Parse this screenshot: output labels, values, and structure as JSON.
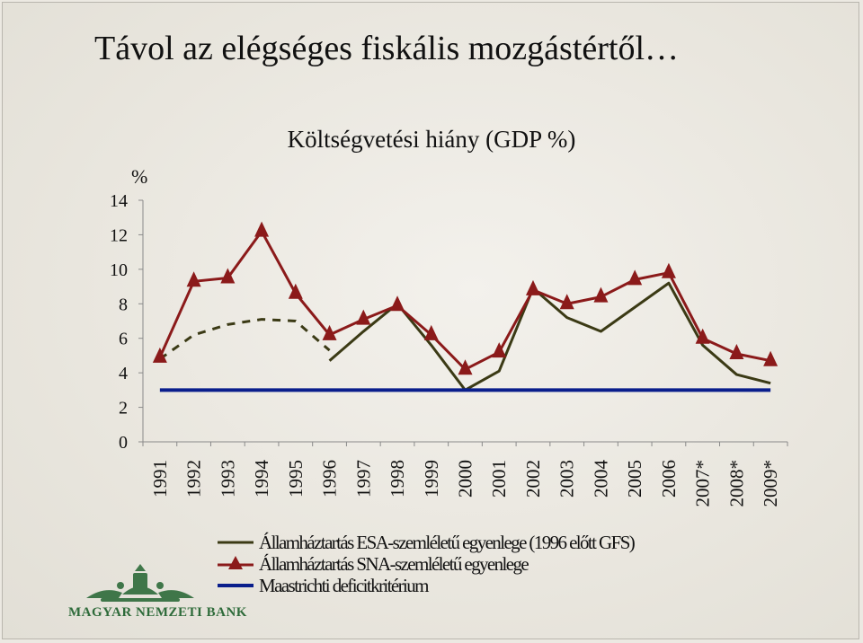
{
  "slide": {
    "title": "Távol az elégséges fiskális mozgástértől…"
  },
  "logo": {
    "text": "MAGYAR NEMZETI BANK"
  },
  "chart_data": {
    "type": "line",
    "title": "Költségvetési hiány (GDP %)",
    "y_unit": "%",
    "ylim": [
      0,
      14
    ],
    "y_ticks": [
      0,
      2,
      4,
      6,
      8,
      10,
      12,
      14
    ],
    "categories": [
      "1991",
      "1992",
      "1993",
      "1994",
      "1995",
      "1996",
      "1997",
      "1998",
      "1999",
      "2000",
      "2001",
      "2002",
      "2003",
      "2004",
      "2005",
      "2006",
      "2007*",
      "2008*",
      "2009*"
    ],
    "series": [
      {
        "name": "Államháztartás ESA-szemléletű egyenlege (1996 előtt GFS)",
        "color": "#3b3a15",
        "style": "solid",
        "values": [
          null,
          null,
          null,
          null,
          null,
          4.7,
          6.4,
          8.0,
          5.6,
          3.0,
          4.1,
          8.9,
          7.2,
          6.4,
          7.8,
          9.2,
          5.6,
          3.9,
          3.4
        ]
      },
      {
        "name": "",
        "color": "#3b3a15",
        "style": "dashed",
        "values": [
          4.8,
          6.2,
          6.8,
          7.1,
          7.0,
          5.3,
          null,
          null,
          null,
          null,
          null,
          null,
          null,
          null,
          null,
          null,
          null,
          null,
          null
        ]
      },
      {
        "name": "Államháztartás SNA-szemléletű egyenlege",
        "color": "#8b1a1a",
        "marker": "triangle",
        "style": "solid",
        "values": [
          4.9,
          9.3,
          9.5,
          12.2,
          8.6,
          6.2,
          7.1,
          7.9,
          6.2,
          4.2,
          5.2,
          8.8,
          8.0,
          8.4,
          9.4,
          9.8,
          6.0,
          5.1,
          4.7
        ]
      },
      {
        "name": "Maastrichti deficitkritérium",
        "color": "#0a1e8c",
        "style": "solid",
        "values": [
          3,
          3,
          3,
          3,
          3,
          3,
          3,
          3,
          3,
          3,
          3,
          3,
          3,
          3,
          3,
          3,
          3,
          3,
          3
        ]
      }
    ],
    "grid": false,
    "legend_position": "bottom"
  }
}
